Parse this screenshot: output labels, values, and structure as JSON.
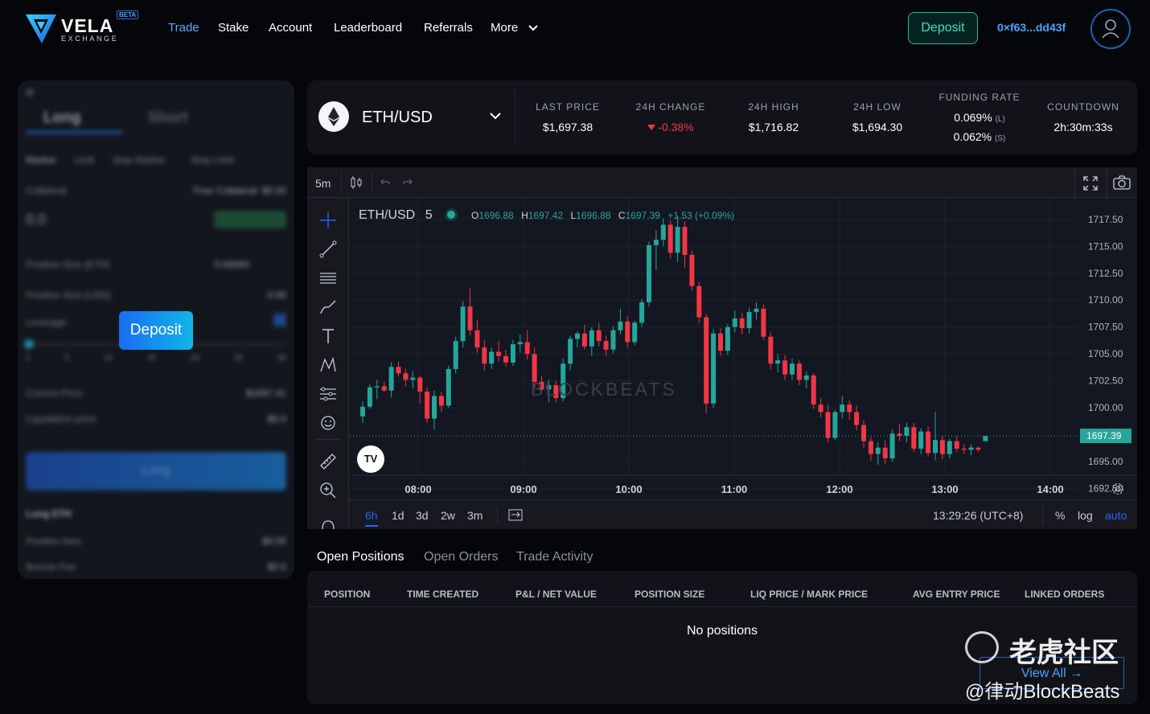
{
  "brand": {
    "name": "VELA",
    "sub": "EXCHANGE",
    "badge": "BETA"
  },
  "nav": [
    {
      "label": "Trade",
      "active": true
    },
    {
      "label": "Stake"
    },
    {
      "label": "Account"
    },
    {
      "label": "Leaderboard"
    },
    {
      "label": "Referrals"
    },
    {
      "label": "More"
    }
  ],
  "header": {
    "deposit_label": "Deposit",
    "wallet": "0×f63...dd43f"
  },
  "order_panel": {
    "tabs": [
      "Long",
      "Short"
    ],
    "types": [
      "Market",
      "Limit",
      "Stop Market",
      "Stop Limit"
    ],
    "collateral_label": "Collateral",
    "collateral_hint": "Free Collateral: $0.00",
    "collateral_value": "0.0",
    "rows": [
      {
        "label": "Position Size (ETH)",
        "value": "0.00000"
      },
      {
        "label": "Position Size (USD)",
        "value": "0.00"
      },
      {
        "label": "Leverage",
        "value": ""
      },
      {
        "label": "Current Price",
        "value": "$1697.41"
      },
      {
        "label": "Liquidation price",
        "value": "$0.0"
      }
    ],
    "leverage_marks": [
      "2",
      "5",
      "10",
      "15",
      "20",
      "25",
      "30"
    ],
    "submit_label": "Long",
    "summary_title": "Long ETH",
    "summary_rows": [
      {
        "label": "Position fees",
        "value": "$0.00"
      },
      {
        "label": "Borrow Fee",
        "value": "$0.0"
      }
    ],
    "deposit_popup": "Deposit"
  },
  "ticker": {
    "pair": "ETH/USD",
    "stats": [
      {
        "label": "LAST PRICE",
        "value": "$1,697.38"
      },
      {
        "label": "24H CHANGE",
        "value": "-0.38%"
      },
      {
        "label": "24H HIGH",
        "value": "$1,716.82"
      },
      {
        "label": "24H LOW",
        "value": "$1,694.30"
      },
      {
        "label": "FUNDING RATE",
        "long": "0.069%",
        "long_tag": "(L)",
        "short": "0.062%",
        "short_tag": "(S)"
      },
      {
        "label": "COUNTDOWN",
        "value": "2h:30m:33s"
      }
    ],
    "colors": {
      "down": "#f23645",
      "up": "#26a69a"
    }
  },
  "chart": {
    "interval": "5m",
    "legend_pair": "ETH/USD",
    "legend_interval": "5",
    "ohlc": {
      "o": "1696.88",
      "h": "1697.42",
      "l": "1696.88",
      "c": "1697.39",
      "chg": "+1.53 (+0.09%)"
    },
    "price_ticks": [
      "1717.50",
      "1715.00",
      "1712.50",
      "1710.00",
      "1707.50",
      "1705.00",
      "1702.50",
      "1700.00",
      "1695.00",
      "1692.50"
    ],
    "last_price": "1697.39",
    "time_ticks": [
      "08:00",
      "09:00",
      "10:00",
      "11:00",
      "12:00",
      "13:00",
      "14:00"
    ],
    "ranges": [
      "6h",
      "1d",
      "3d",
      "2w",
      "3m"
    ],
    "clock": "13:29:26 (UTC+8)",
    "scale_opts": [
      "%",
      "log",
      "auto"
    ],
    "watermark": "BLOCKBEATS"
  },
  "chart_data": {
    "type": "candlestick",
    "pair": "ETH/USD",
    "ylim": [
      1691.5,
      1719.5
    ],
    "candles": [
      [
        1699.2,
        1700.6,
        1698.6,
        1700.1
      ],
      [
        1700.1,
        1702.2,
        1699.9,
        1701.9
      ],
      [
        1701.9,
        1702.6,
        1700.8,
        1702.0
      ],
      [
        1702.0,
        1702.4,
        1701.5,
        1701.6
      ],
      [
        1701.6,
        1704.2,
        1701.0,
        1703.8
      ],
      [
        1703.8,
        1704.3,
        1702.9,
        1703.2
      ],
      [
        1703.2,
        1703.6,
        1702.0,
        1702.6
      ],
      [
        1702.6,
        1703.4,
        1701.8,
        1702.8
      ],
      [
        1702.8,
        1703.0,
        1700.4,
        1701.5
      ],
      [
        1701.5,
        1701.9,
        1698.6,
        1699.0
      ],
      [
        1699.0,
        1701.6,
        1698.0,
        1701.1
      ],
      [
        1701.1,
        1701.5,
        1699.6,
        1700.2
      ],
      [
        1700.2,
        1703.9,
        1700.0,
        1703.6
      ],
      [
        1703.6,
        1706.6,
        1703.2,
        1706.2
      ],
      [
        1706.2,
        1709.9,
        1705.6,
        1709.4
      ],
      [
        1709.4,
        1711.1,
        1706.7,
        1707.2
      ],
      [
        1707.2,
        1708.2,
        1705.1,
        1705.6
      ],
      [
        1705.6,
        1706.3,
        1703.4,
        1704.1
      ],
      [
        1704.1,
        1705.6,
        1703.6,
        1705.2
      ],
      [
        1705.2,
        1706.2,
        1704.3,
        1704.8
      ],
      [
        1704.8,
        1705.4,
        1703.8,
        1704.2
      ],
      [
        1704.2,
        1706.3,
        1703.9,
        1705.9
      ],
      [
        1705.9,
        1706.8,
        1705.1,
        1706.1
      ],
      [
        1706.1,
        1707.2,
        1704.5,
        1705.0
      ],
      [
        1705.0,
        1705.6,
        1701.9,
        1702.4
      ],
      [
        1702.4,
        1703.0,
        1701.4,
        1701.7
      ],
      [
        1701.7,
        1702.6,
        1700.5,
        1702.1
      ],
      [
        1702.1,
        1702.5,
        1700.5,
        1700.9
      ],
      [
        1700.9,
        1704.6,
        1700.6,
        1704.1
      ],
      [
        1704.1,
        1706.7,
        1703.5,
        1706.4
      ],
      [
        1706.4,
        1707.1,
        1705.6,
        1706.9
      ],
      [
        1706.9,
        1707.7,
        1705.4,
        1705.7
      ],
      [
        1705.7,
        1707.5,
        1704.8,
        1707.2
      ],
      [
        1707.2,
        1707.9,
        1705.7,
        1706.2
      ],
      [
        1706.2,
        1706.7,
        1704.8,
        1705.4
      ],
      [
        1705.4,
        1707.6,
        1705.1,
        1707.2
      ],
      [
        1707.2,
        1709.2,
        1706.8,
        1708.0
      ],
      [
        1708.0,
        1708.5,
        1705.6,
        1706.1
      ],
      [
        1706.1,
        1708.1,
        1705.8,
        1707.9
      ],
      [
        1707.9,
        1710.1,
        1707.5,
        1709.8
      ],
      [
        1709.8,
        1715.4,
        1709.4,
        1715.1
      ],
      [
        1715.1,
        1716.5,
        1712.8,
        1715.6
      ],
      [
        1715.6,
        1717.6,
        1715.0,
        1717.0
      ],
      [
        1717.0,
        1717.4,
        1713.9,
        1714.4
      ],
      [
        1714.4,
        1717.8,
        1713.5,
        1716.8
      ],
      [
        1716.8,
        1717.3,
        1713.0,
        1714.2
      ],
      [
        1714.2,
        1714.6,
        1710.9,
        1711.3
      ],
      [
        1711.3,
        1711.7,
        1707.9,
        1708.4
      ],
      [
        1708.4,
        1708.7,
        1699.5,
        1700.4
      ],
      [
        1700.4,
        1707.3,
        1700.0,
        1706.9
      ],
      [
        1706.9,
        1707.4,
        1704.8,
        1705.3
      ],
      [
        1705.3,
        1707.8,
        1704.9,
        1707.5
      ],
      [
        1707.5,
        1709.0,
        1707.0,
        1708.3
      ],
      [
        1708.3,
        1708.8,
        1706.8,
        1707.4
      ],
      [
        1707.4,
        1709.3,
        1706.9,
        1708.9
      ],
      [
        1708.9,
        1709.8,
        1708.2,
        1709.2
      ],
      [
        1709.2,
        1709.6,
        1706.3,
        1706.6
      ],
      [
        1706.6,
        1707.0,
        1703.6,
        1704.1
      ],
      [
        1704.1,
        1705.0,
        1703.3,
        1704.4
      ],
      [
        1704.4,
        1704.9,
        1702.6,
        1703.1
      ],
      [
        1703.1,
        1704.6,
        1702.6,
        1704.1
      ],
      [
        1704.1,
        1704.4,
        1702.1,
        1702.6
      ],
      [
        1702.6,
        1703.4,
        1701.8,
        1703.0
      ],
      [
        1703.0,
        1703.2,
        1699.9,
        1700.3
      ],
      [
        1700.3,
        1700.9,
        1699.1,
        1699.6
      ],
      [
        1699.6,
        1700.3,
        1696.8,
        1697.2
      ],
      [
        1697.2,
        1699.8,
        1697.0,
        1699.6
      ],
      [
        1699.6,
        1701.1,
        1699.0,
        1700.3
      ],
      [
        1700.3,
        1700.7,
        1698.9,
        1699.6
      ],
      [
        1699.6,
        1700.2,
        1697.9,
        1698.4
      ],
      [
        1698.4,
        1698.9,
        1696.3,
        1696.9
      ],
      [
        1696.9,
        1697.3,
        1695.1,
        1695.7
      ],
      [
        1695.7,
        1696.8,
        1694.7,
        1696.3
      ],
      [
        1696.3,
        1697.0,
        1694.8,
        1695.3
      ],
      [
        1695.3,
        1698.0,
        1695.0,
        1697.6
      ],
      [
        1697.6,
        1698.5,
        1696.9,
        1697.4
      ],
      [
        1697.4,
        1698.6,
        1696.8,
        1698.2
      ],
      [
        1698.2,
        1698.6,
        1695.9,
        1696.2
      ],
      [
        1696.2,
        1698.1,
        1695.7,
        1697.8
      ],
      [
        1697.8,
        1698.3,
        1695.5,
        1695.8
      ],
      [
        1695.8,
        1699.6,
        1695.1,
        1697.0
      ],
      [
        1697.0,
        1697.4,
        1695.2,
        1695.7
      ],
      [
        1695.7,
        1697.1,
        1695.3,
        1696.9
      ],
      [
        1696.9,
        1697.4,
        1695.9,
        1696.2
      ],
      [
        1696.2,
        1696.6,
        1695.7,
        1696.1
      ],
      [
        1696.1,
        1696.6,
        1695.6,
        1696.3
      ],
      [
        1696.3,
        1696.4,
        1695.9,
        1696.1
      ],
      [
        1696.9,
        1697.4,
        1696.9,
        1697.39
      ]
    ]
  },
  "positions": {
    "tabs": [
      "Open Positions",
      "Open Orders",
      "Trade Activity"
    ],
    "columns": [
      "POSITION",
      "TIME CREATED",
      "P&L / NET VALUE",
      "POSITION SIZE",
      "LIQ PRICE / MARK PRICE",
      "AVG ENTRY PRICE",
      "LINKED ORDERS"
    ],
    "empty_text": "No positions",
    "view_all": "View All →"
  },
  "overlay": {
    "tiger": "老虎社区",
    "credit": "@律动BlockBeats"
  }
}
